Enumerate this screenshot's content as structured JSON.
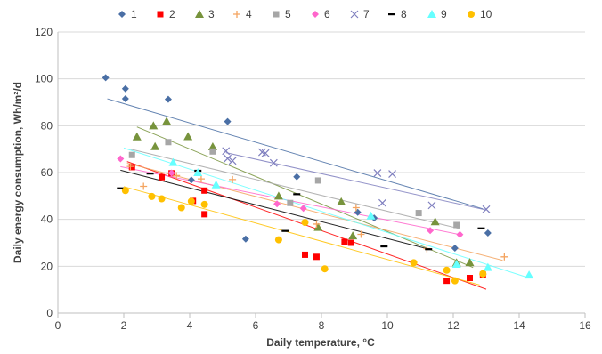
{
  "chart_data": {
    "type": "scatter",
    "title": "",
    "xlabel": "Daily temperature, °C",
    "ylabel": "Daily energy consumption, Wh/m²/d",
    "xlim": [
      0,
      16
    ],
    "ylim": [
      0,
      120
    ],
    "xticks": [
      0,
      2,
      4,
      6,
      8,
      10,
      12,
      14,
      16
    ],
    "yticks": [
      0,
      20,
      40,
      60,
      80,
      100,
      120
    ],
    "grid": "horizontal major gridlines",
    "legend_position": "top",
    "series": [
      {
        "name": "1",
        "marker": "diamond",
        "color": "#4a6fa5",
        "trendline": [
          [
            1.5,
            91.5
          ],
          [
            12.9,
            44.5
          ]
        ],
        "points": [
          [
            1.45,
            100.5
          ],
          [
            2.05,
            95.8
          ],
          [
            2.05,
            91.5
          ],
          [
            3.35,
            91.3
          ],
          [
            5.15,
            81.8
          ],
          [
            4.05,
            56.8
          ],
          [
            5.7,
            31.6
          ],
          [
            7.25,
            58.2
          ],
          [
            9.1,
            43
          ],
          [
            9.6,
            40.6
          ],
          [
            12.05,
            27.7
          ],
          [
            13.05,
            34.2
          ]
        ]
      },
      {
        "name": "2",
        "marker": "square",
        "color": "#ff0000",
        "trendline": [
          [
            2.1,
            64.7
          ],
          [
            13.0,
            10.2
          ]
        ],
        "points": [
          [
            2.25,
            62.3
          ],
          [
            3.15,
            58
          ],
          [
            3.45,
            59.7
          ],
          [
            4.1,
            47.9
          ],
          [
            4.45,
            52.3
          ],
          [
            4.45,
            42.2
          ],
          [
            7.5,
            24.9
          ],
          [
            7.85,
            24
          ],
          [
            8.7,
            30.4
          ],
          [
            8.9,
            30
          ],
          [
            11.8,
            13.8
          ],
          [
            12.5,
            15
          ],
          [
            12.9,
            16.4
          ]
        ]
      },
      {
        "name": "3",
        "marker": "triangle",
        "color": "#77933c",
        "trendline": [
          [
            2.4,
            79.5
          ],
          [
            12.6,
            19.5
          ]
        ],
        "points": [
          [
            2.4,
            75.3
          ],
          [
            2.9,
            80
          ],
          [
            2.95,
            71.1
          ],
          [
            3.3,
            81.9
          ],
          [
            3.95,
            75.4
          ],
          [
            4.7,
            71
          ],
          [
            6.7,
            50
          ],
          [
            7.9,
            36.6
          ],
          [
            8.6,
            47.5
          ],
          [
            8.95,
            33
          ],
          [
            11.45,
            39
          ],
          [
            12.1,
            21.5
          ],
          [
            12.5,
            21.6
          ]
        ]
      },
      {
        "name": "4",
        "marker": "plus",
        "color": "#f4a460",
        "trendline": [
          [
            2.1,
            64.0
          ],
          [
            13.5,
            22.5
          ]
        ],
        "points": [
          [
            2.2,
            62.6
          ],
          [
            2.6,
            54.1
          ],
          [
            3.6,
            58.7
          ],
          [
            4.35,
            57.3
          ],
          [
            5.3,
            57
          ],
          [
            7.85,
            38
          ],
          [
            9.05,
            45
          ],
          [
            9.2,
            33.6
          ],
          [
            11.2,
            27.5
          ],
          [
            12.9,
            16.5
          ],
          [
            13.55,
            24
          ]
        ]
      },
      {
        "name": "5",
        "marker": "square",
        "color": "#a6a6a6",
        "trendline": [
          [
            2.2,
            70.0
          ],
          [
            12.2,
            36.0
          ]
        ],
        "points": [
          [
            2.25,
            67.5
          ],
          [
            3.35,
            73
          ],
          [
            4.7,
            69
          ],
          [
            7.05,
            47
          ],
          [
            7.9,
            56.6
          ],
          [
            10.95,
            42.7
          ],
          [
            12.1,
            37.6
          ]
        ]
      },
      {
        "name": "6",
        "marker": "diamond",
        "color": "#ff66cc",
        "trendline": [
          [
            1.9,
            62.5
          ],
          [
            12.2,
            33.5
          ]
        ],
        "points": [
          [
            1.9,
            65.9
          ],
          [
            3.45,
            59.8
          ],
          [
            6.65,
            46.6
          ],
          [
            7.45,
            44.7
          ],
          [
            11.3,
            35.2
          ],
          [
            12.2,
            33.5
          ]
        ]
      },
      {
        "name": "7",
        "marker": "x",
        "color": "#7f7fbf",
        "trendline": [
          [
            5.1,
            68.5
          ],
          [
            13.0,
            44.0
          ]
        ],
        "points": [
          [
            5.1,
            69.2
          ],
          [
            5.15,
            66
          ],
          [
            5.3,
            65
          ],
          [
            6.2,
            68.7
          ],
          [
            6.3,
            68.3
          ],
          [
            6.55,
            64.1
          ],
          [
            9.7,
            59.8
          ],
          [
            9.85,
            47
          ],
          [
            10.15,
            59.4
          ],
          [
            11.35,
            46
          ],
          [
            13.0,
            44.3
          ]
        ]
      },
      {
        "name": "8",
        "marker": "dash",
        "color": "#000000",
        "trendline": [
          [
            1.9,
            61.0
          ],
          [
            11.2,
            27.5
          ]
        ],
        "points": [
          [
            1.9,
            53.3
          ],
          [
            2.8,
            59.6
          ],
          [
            4.25,
            60.8
          ],
          [
            6.9,
            35.1
          ],
          [
            7.25,
            50.8
          ],
          [
            9.9,
            28.5
          ],
          [
            11.25,
            27.3
          ],
          [
            12.85,
            36.2
          ]
        ]
      },
      {
        "name": "9",
        "marker": "triangle",
        "color": "#66ffff",
        "trendline": [
          [
            2.0,
            70.5
          ],
          [
            14.3,
            15.0
          ]
        ],
        "points": [
          [
            3.5,
            64.3
          ],
          [
            4.25,
            60
          ],
          [
            4.8,
            54.8
          ],
          [
            9.5,
            41.5
          ],
          [
            12.1,
            20.9
          ],
          [
            13.05,
            19.5
          ],
          [
            14.3,
            16.3
          ]
        ]
      },
      {
        "name": "10",
        "marker": "circle",
        "color": "#ffc000",
        "trendline": [
          [
            2.0,
            54.0
          ],
          [
            12.8,
            12.0
          ]
        ],
        "points": [
          [
            2.05,
            52.3
          ],
          [
            2.85,
            49.8
          ],
          [
            3.15,
            48.8
          ],
          [
            3.75,
            45
          ],
          [
            4.05,
            47.7
          ],
          [
            4.45,
            46.4
          ],
          [
            6.7,
            31.3
          ],
          [
            7.5,
            38.7
          ],
          [
            8.1,
            18.9
          ],
          [
            10.8,
            21.5
          ],
          [
            11.8,
            18.3
          ],
          [
            12.05,
            13.8
          ],
          [
            12.9,
            16.8
          ]
        ]
      }
    ]
  }
}
